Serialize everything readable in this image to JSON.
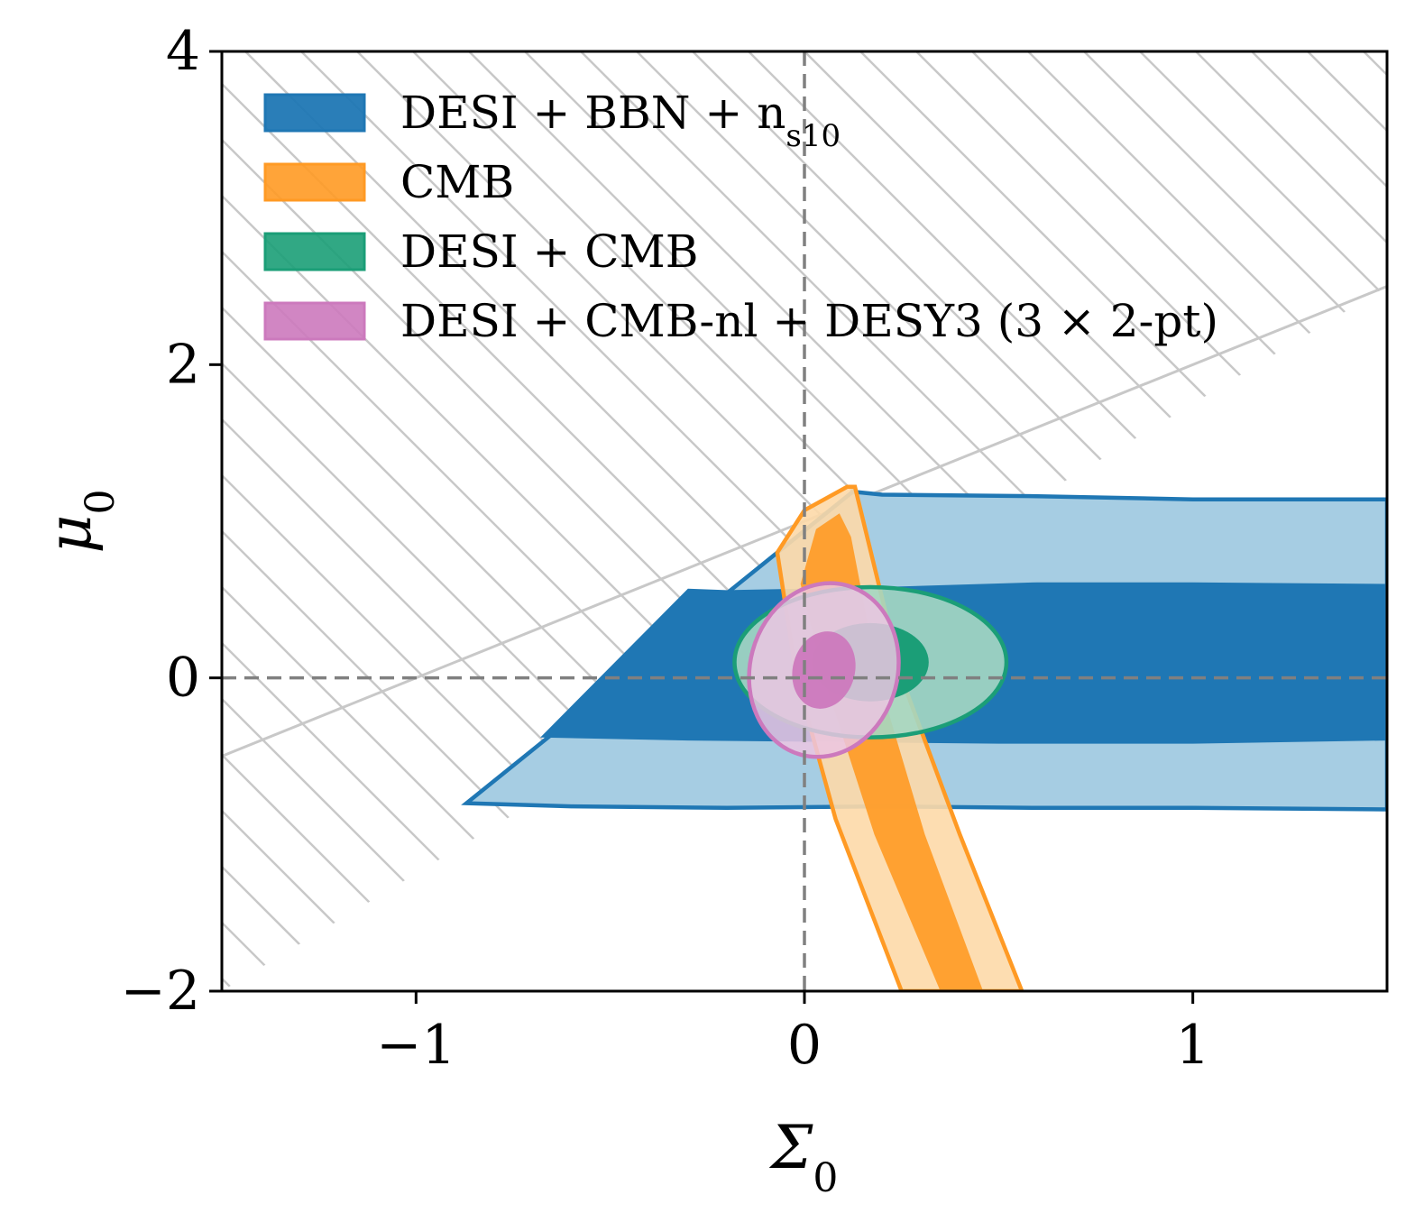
{
  "chart_data": {
    "type": "contour",
    "title": "",
    "xlabel": "Σ",
    "xlabel_sub": "0",
    "ylabel": "μ",
    "ylabel_sub": "0",
    "xlim": [
      -1.5,
      1.5
    ],
    "ylim": [
      -2,
      4
    ],
    "xticks": [
      -1,
      0,
      1
    ],
    "yticks": [
      -2,
      0,
      2,
      4
    ],
    "xtick_labels": [
      "−1",
      "0",
      "1"
    ],
    "ytick_labels": [
      "−2",
      "0",
      "2",
      "4"
    ],
    "reference_lines": {
      "x": 0,
      "y": 0,
      "style": "dashed",
      "color": "#808080"
    },
    "excluded_region": {
      "boundary": "μ0 = Σ0 + 1",
      "side": "above",
      "style": "hatched",
      "color": "#c8c8c8"
    },
    "legend_position": "top-left",
    "series": [
      {
        "name": "DESI + BBN + n",
        "name_sub": "s10",
        "color": "#1f77b4",
        "light_color": "#a6cde3",
        "outer": [
          [
            -0.87,
            -0.8
          ],
          [
            -0.6,
            -0.82
          ],
          [
            -0.2,
            -0.83
          ],
          [
            0.2,
            -0.82
          ],
          [
            0.6,
            -0.83
          ],
          [
            1.0,
            -0.83
          ],
          [
            1.5,
            -0.84
          ],
          [
            1.5,
            1.14
          ],
          [
            1.0,
            1.14
          ],
          [
            0.6,
            1.16
          ],
          [
            0.2,
            1.17
          ],
          [
            0.12,
            1.19
          ],
          [
            0.13,
            1.2
          ],
          [
            -0.87,
            -0.8
          ]
        ],
        "inner": [
          [
            -0.68,
            -0.38
          ],
          [
            -0.3,
            -0.4
          ],
          [
            0.1,
            -0.41
          ],
          [
            0.5,
            -0.42
          ],
          [
            1.0,
            -0.42
          ],
          [
            1.5,
            -0.4
          ],
          [
            1.5,
            0.6
          ],
          [
            1.0,
            0.61
          ],
          [
            0.6,
            0.61
          ],
          [
            0.2,
            0.58
          ],
          [
            -0.2,
            0.56
          ],
          [
            -0.3,
            0.57
          ],
          [
            -0.68,
            -0.38
          ]
        ]
      },
      {
        "name": "CMB",
        "color": "#ff9a24",
        "light_color": "#fdd9a8",
        "outer": [
          [
            -0.07,
            0.8
          ],
          [
            0.0,
            1.07
          ],
          [
            0.11,
            1.22
          ],
          [
            0.13,
            1.22
          ],
          [
            0.25,
            0.0
          ],
          [
            0.4,
            -1.0
          ],
          [
            0.56,
            -2.0
          ],
          [
            0.25,
            -2.0
          ],
          [
            0.08,
            -0.9
          ],
          [
            -0.02,
            0.0
          ],
          [
            -0.07,
            0.8
          ]
        ],
        "inner": [
          [
            -0.01,
            0.6
          ],
          [
            0.03,
            0.95
          ],
          [
            0.09,
            1.05
          ],
          [
            0.12,
            0.9
          ],
          [
            0.19,
            0.0
          ],
          [
            0.31,
            -1.0
          ],
          [
            0.46,
            -2.0
          ],
          [
            0.35,
            -2.0
          ],
          [
            0.18,
            -1.0
          ],
          [
            0.05,
            0.0
          ],
          [
            -0.01,
            0.6
          ]
        ]
      },
      {
        "name": "DESI + CMB",
        "color": "#1b9e77",
        "light_color": "#a5d7c2",
        "center": [
          0.17,
          0.1
        ],
        "outer_radii": [
          0.35,
          0.48
        ],
        "inner_radii": [
          0.15,
          0.25
        ]
      },
      {
        "name": "DESI + CMB-nl + DESY3 (3 × 2-pt)",
        "color": "#cc79bd",
        "light_color": "#ebc5e2",
        "center": [
          0.05,
          0.05
        ],
        "outer_radii": [
          0.19,
          0.56
        ],
        "inner_radii": [
          0.08,
          0.25
        ],
        "rotation_deg": 15
      }
    ]
  }
}
